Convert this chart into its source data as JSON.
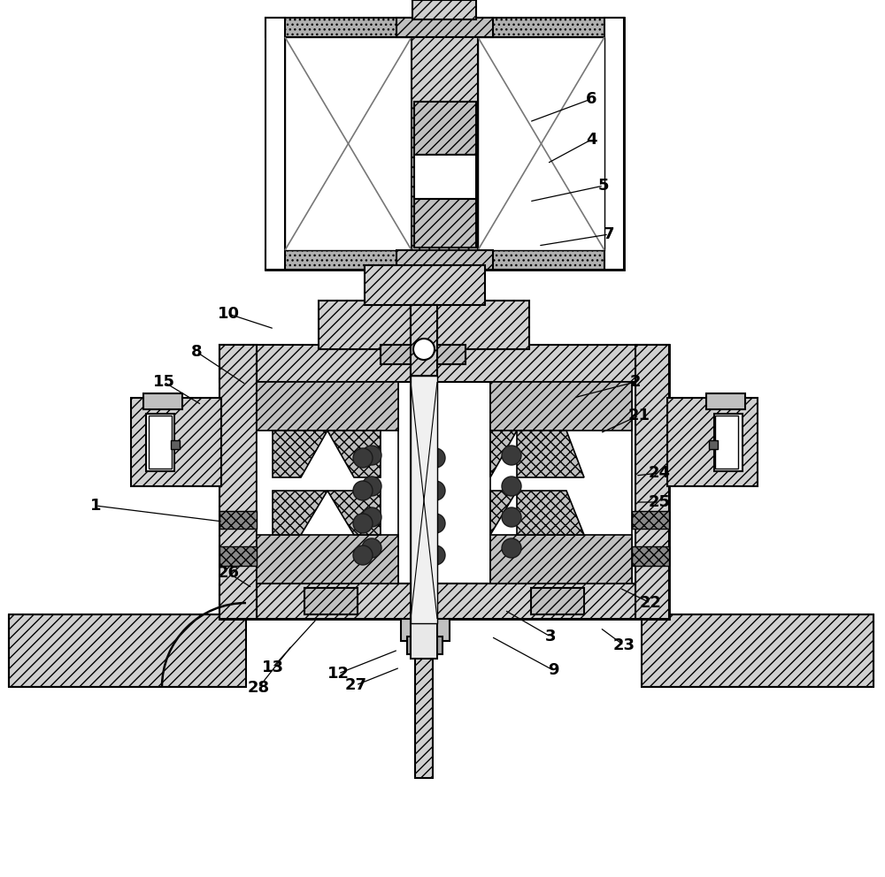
{
  "bg": "#ffffff",
  "figsize": [
    10.0,
    9.92
  ],
  "dpi": 100,
  "labels": [
    [
      "1",
      108,
      572
    ],
    [
      "2",
      718,
      432
    ],
    [
      "3",
      622,
      720
    ],
    [
      "4",
      668,
      158
    ],
    [
      "5",
      682,
      210
    ],
    [
      "6",
      668,
      112
    ],
    [
      "7",
      688,
      265
    ],
    [
      "8",
      222,
      398
    ],
    [
      "9",
      625,
      758
    ],
    [
      "10",
      258,
      355
    ],
    [
      "12",
      382,
      762
    ],
    [
      "13",
      308,
      755
    ],
    [
      "15",
      185,
      432
    ],
    [
      "21",
      722,
      470
    ],
    [
      "22",
      735,
      682
    ],
    [
      "23",
      705,
      730
    ],
    [
      "24",
      745,
      535
    ],
    [
      "25",
      745,
      568
    ],
    [
      "26",
      258,
      648
    ],
    [
      "27",
      402,
      775
    ],
    [
      "28",
      292,
      778
    ]
  ],
  "leader_ends": [
    [
      "1",
      252,
      590
    ],
    [
      "2",
      648,
      450
    ],
    [
      "3",
      570,
      690
    ],
    [
      "4",
      618,
      185
    ],
    [
      "5",
      598,
      228
    ],
    [
      "6",
      598,
      138
    ],
    [
      "7",
      608,
      278
    ],
    [
      "8",
      278,
      435
    ],
    [
      "9",
      555,
      720
    ],
    [
      "10",
      310,
      372
    ],
    [
      "12",
      450,
      735
    ],
    [
      "13",
      358,
      700
    ],
    [
      "15",
      228,
      458
    ],
    [
      "21",
      678,
      490
    ],
    [
      "22",
      700,
      665
    ],
    [
      "23",
      678,
      710
    ],
    [
      "24",
      718,
      538
    ],
    [
      "25",
      718,
      568
    ],
    [
      "26",
      285,
      665
    ],
    [
      "27",
      452,
      755
    ],
    [
      "28",
      330,
      730
    ]
  ]
}
